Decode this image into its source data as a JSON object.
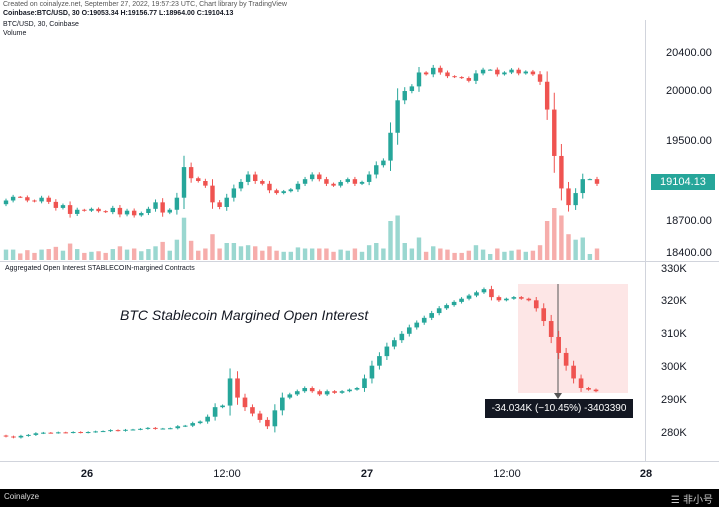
{
  "header": {
    "credit": "Created on coinalyze.net, September 27, 2022, 19:57:23 UTC, Chart library by TradingView",
    "ohlc": "Coinbase:BTC/USD, 30 O:19053.34 H:19156.77 L:18964.00 C:19104.13",
    "subtitle": "BTC/USD, 30, Coinbase",
    "volume_label": "Volume"
  },
  "lower_title": "Aggregated Open Interest STABLECOIN-margined Contracts",
  "annotation": "BTC Stablecoin Margined Open Interest",
  "measure_label": "-34.034K (−10.45%) -3403390",
  "last_price": "19104.13",
  "footer": {
    "logo": "Coinalyze",
    "watermark": "☰ 非小号"
  },
  "colors": {
    "up": "#26a69a",
    "down": "#ef5350",
    "vol_up": "#8fd3cb",
    "vol_down": "#f5a4a2",
    "measure_zone": "#fde6e6"
  },
  "chart_data": [
    {
      "type": "candlestick",
      "title": "BTC/USD, 30, Coinbase",
      "ylim": [
        18300,
        20650
      ],
      "y_ticks": [
        "20400.00",
        "20000.00",
        "19500.00",
        "18700.00",
        "18400.00"
      ],
      "x_tick_labels": [
        "26",
        "12:00",
        "27",
        "12:00",
        "28"
      ],
      "close": [
        18920,
        18960,
        18955,
        18920,
        18910,
        18950,
        18905,
        18840,
        18870,
        18775,
        18820,
        18810,
        18830,
        18805,
        18795,
        18840,
        18770,
        18810,
        18760,
        18785,
        18830,
        18900,
        18790,
        18820,
        18950,
        19280,
        19160,
        19130,
        19080,
        18900,
        18850,
        18950,
        19050,
        19120,
        19200,
        19130,
        19100,
        19030,
        19000,
        19020,
        19040,
        19100,
        19150,
        19200,
        19150,
        19100,
        19080,
        19120,
        19150,
        19100,
        19120,
        19200,
        19300,
        19350,
        19650,
        20000,
        20100,
        20150,
        20300,
        20280,
        20350,
        20300,
        20260,
        20250,
        20240,
        20210,
        20290,
        20330,
        20330,
        20280,
        20300,
        20330,
        20290,
        20310,
        20280,
        20200,
        19900,
        19400,
        19050,
        18870,
        19000,
        19150,
        19150,
        19100
      ],
      "volume_note": "relative volume bars under price",
      "volume_title": "Volume"
    },
    {
      "type": "candlestick",
      "title": "Aggregated Open Interest STABLECOIN-margined Contracts",
      "ylim": [
        272000,
        330000
      ],
      "y_ticks": [
        "330K",
        "320K",
        "310K",
        "300K",
        "290K",
        "280K"
      ],
      "close": [
        277800,
        277500,
        278000,
        278300,
        278800,
        279000,
        278900,
        279100,
        279000,
        279200,
        279000,
        279200,
        279400,
        279500,
        279800,
        279600,
        279900,
        280000,
        280200,
        280500,
        280200,
        280300,
        280400,
        281000,
        281200,
        282000,
        282500,
        284000,
        287000,
        287500,
        296000,
        290000,
        287000,
        285000,
        283000,
        281000,
        286000,
        290000,
        291000,
        292000,
        293000,
        292000,
        291000,
        292000,
        291500,
        292000,
        292500,
        293000,
        296000,
        300000,
        303000,
        306000,
        308000,
        310000,
        312000,
        313500,
        315000,
        316500,
        318000,
        319000,
        320000,
        321000,
        322000,
        323000,
        324000,
        321500,
        320500,
        321000,
        321500,
        321000,
        320500,
        318000,
        314000,
        309000,
        304000,
        300000,
        296000,
        293000,
        292500,
        292000
      ],
      "measurement": {
        "change": "-34.034K",
        "percent": "−10.45%",
        "raw": "-3403390"
      }
    }
  ]
}
